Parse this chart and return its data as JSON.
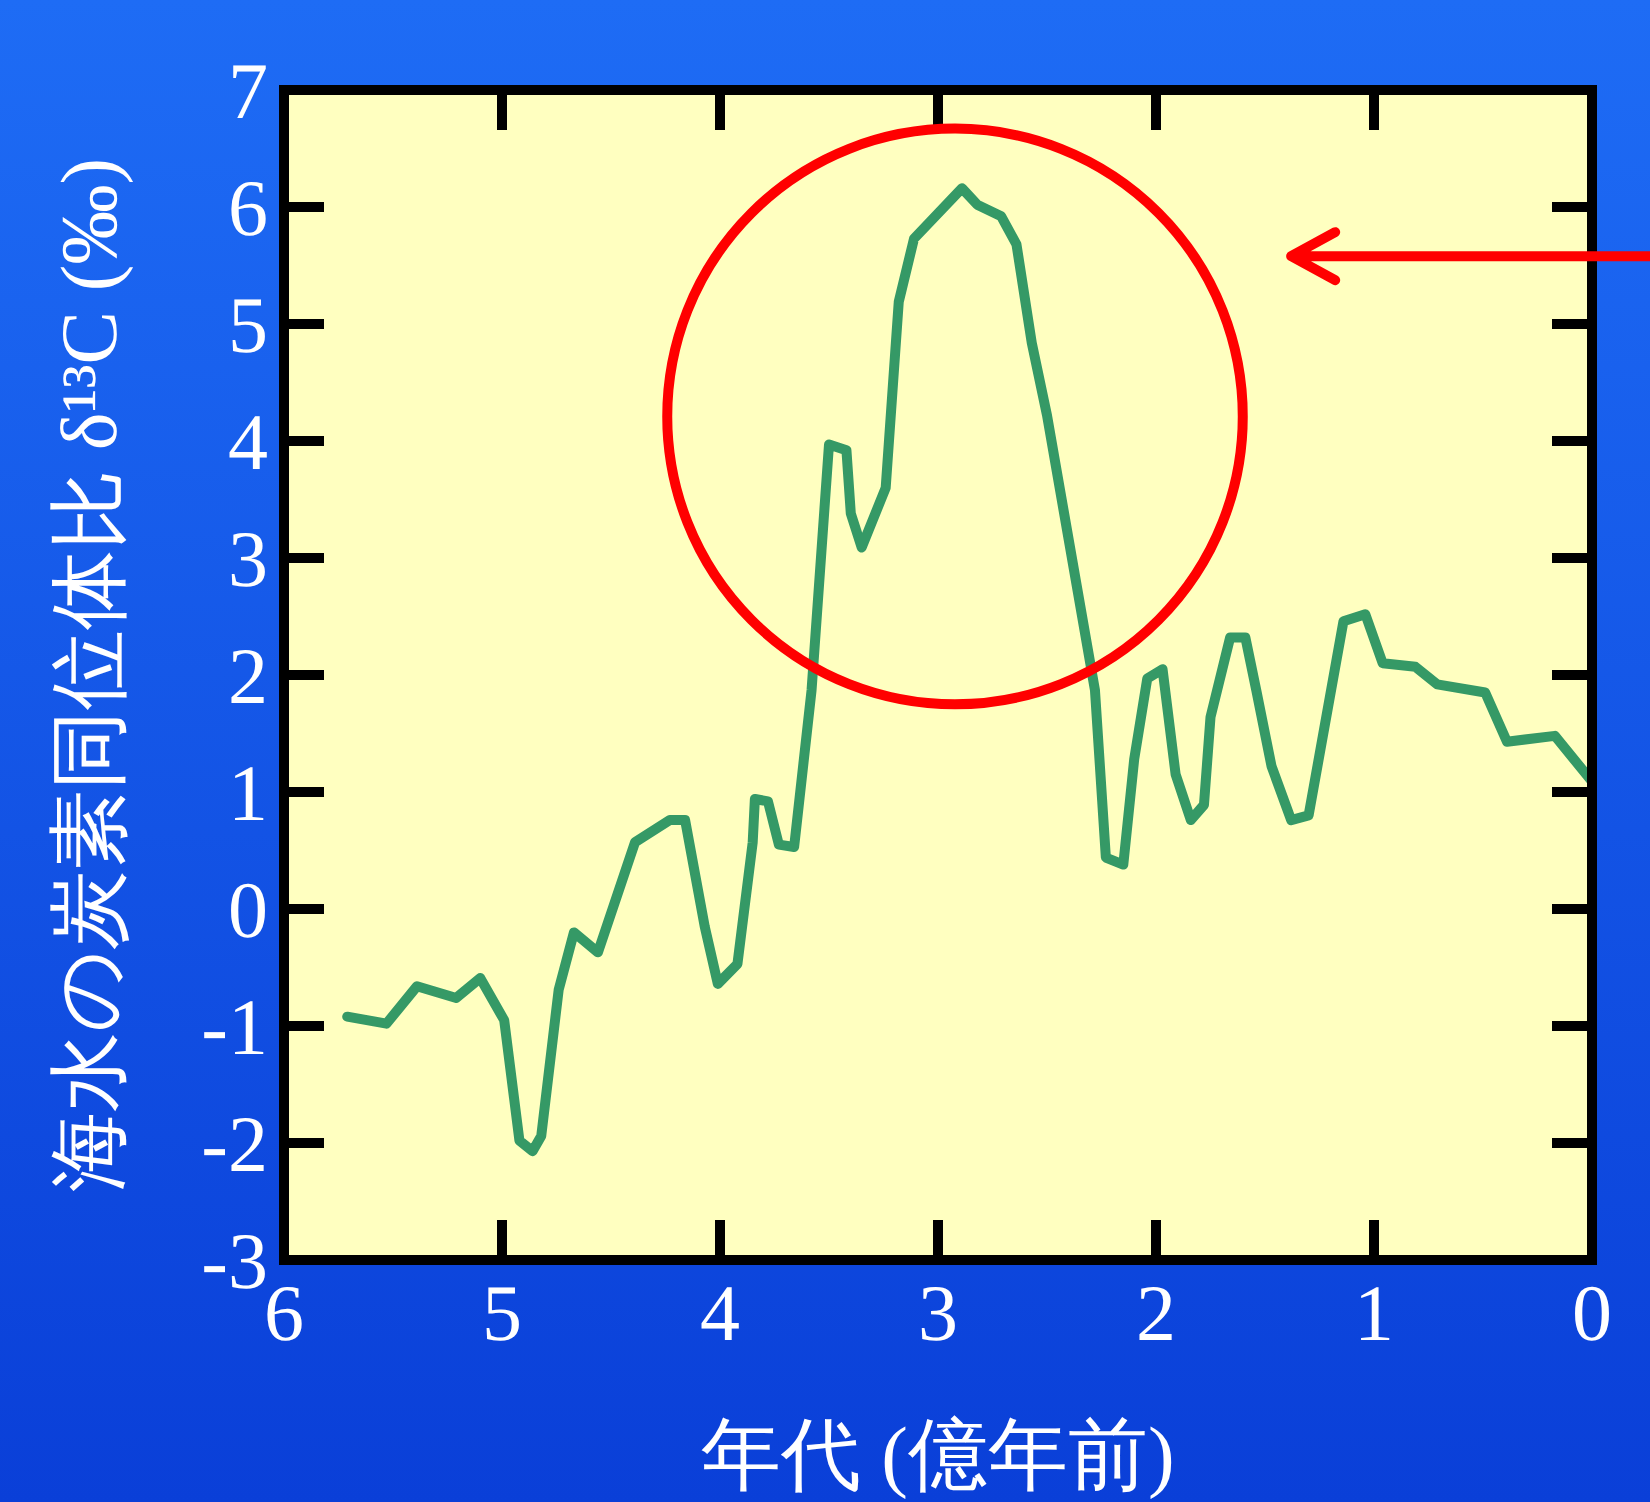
{
  "chart_data": {
    "type": "line",
    "xlabel": "年代 (億年前)",
    "ylabel": "海水の炭素同位体比 δ¹³C (‰)",
    "x": [
      5.71,
      5.53,
      5.39,
      5.21,
      5.1,
      4.99,
      4.92,
      4.86,
      4.82,
      4.74,
      4.67,
      4.56,
      4.39,
      4.23,
      4.16,
      4.07,
      4.01,
      3.92,
      3.85,
      3.84,
      3.78,
      3.73,
      3.66,
      3.58,
      3.5,
      3.42,
      3.4,
      3.35,
      3.24,
      3.18,
      3.11,
      2.89,
      2.82,
      2.71,
      2.64,
      2.57,
      2.5,
      2.28,
      2.23,
      2.15,
      2.1,
      2.04,
      1.97,
      1.91,
      1.84,
      1.78,
      1.75,
      1.66,
      1.59,
      1.54,
      1.47,
      1.38,
      1.3,
      1.14,
      1.04,
      0.96,
      0.81,
      0.71,
      0.49,
      0.39,
      0.17,
      0.0
    ],
    "series": [
      {
        "color": "#359966",
        "values": [
          -0.92,
          -0.98,
          -0.66,
          -0.76,
          -0.59,
          -0.95,
          -1.98,
          -2.07,
          -1.94,
          -0.69,
          -0.2,
          -0.37,
          0.57,
          0.76,
          0.76,
          -0.15,
          -0.64,
          -0.47,
          0.57,
          0.94,
          0.92,
          0.55,
          0.53,
          1.87,
          3.97,
          3.92,
          3.38,
          3.09,
          3.6,
          5.19,
          5.73,
          6.16,
          6.02,
          5.92,
          5.68,
          4.84,
          4.22,
          1.87,
          0.44,
          0.38,
          1.28,
          1.97,
          2.05,
          1.15,
          0.76,
          0.89,
          1.64,
          2.32,
          2.32,
          1.87,
          1.22,
          0.76,
          0.8,
          2.46,
          2.52,
          2.1,
          2.07,
          1.92,
          1.85,
          1.43,
          1.48,
          1.09
        ]
      }
    ],
    "xlim": [
      6,
      0
    ],
    "xticks": [
      6,
      5,
      4,
      3,
      2,
      1,
      0
    ],
    "ylim": [
      -3,
      7
    ],
    "yticks": [
      -3,
      -2,
      -1,
      0,
      1,
      2,
      3,
      4,
      5,
      6,
      7
    ],
    "line_style": "solid"
  }
}
